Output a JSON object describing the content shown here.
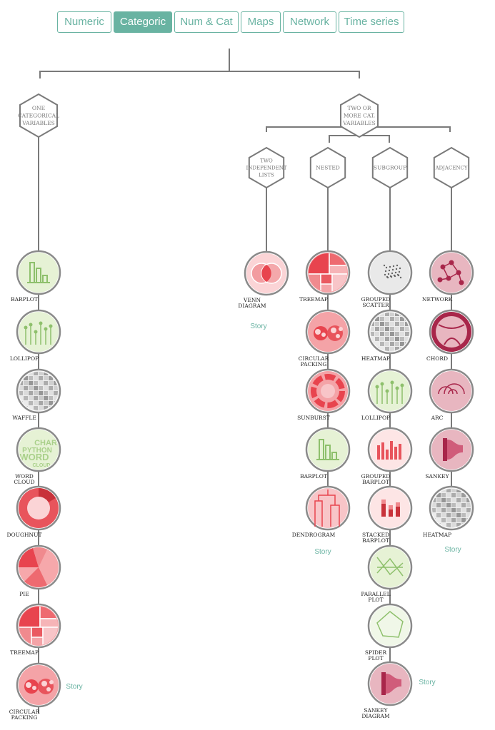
{
  "tabs": [
    {
      "label": "Numeric",
      "active": false
    },
    {
      "label": "Categoric",
      "active": true
    },
    {
      "label": "Num & Cat",
      "active": false
    },
    {
      "label": "Maps",
      "active": false
    },
    {
      "label": "Network",
      "active": false
    },
    {
      "label": "Time series",
      "active": false
    }
  ],
  "branches": {
    "one_cat": [
      "ONE",
      "CATEGORICAL",
      "VARIABLES"
    ],
    "two_cat": [
      "TWO OR",
      "MORE CAT.",
      "VARIABLES"
    ],
    "two_indep": [
      "TWO",
      "INDEPENDENT",
      "LISTS"
    ],
    "nested": [
      "NESTED"
    ],
    "subgroup": [
      "SUBGROUP"
    ],
    "adjacency": [
      "ADJACENCY"
    ]
  },
  "columns": {
    "one_cat": {
      "charts": [
        [
          "BARPLOT"
        ],
        [
          "LOLLIPOP"
        ],
        [
          "WAFFLE"
        ],
        [
          "WORD",
          "CLOUD"
        ],
        [
          "DOUGHNUT"
        ],
        [
          "PIE"
        ],
        [
          "TREEMAP"
        ],
        [
          "CIRCULAR",
          "PACKING"
        ]
      ],
      "story": "Story"
    },
    "two_indep": {
      "charts": [
        [
          "VENN",
          "DIAGRAM"
        ]
      ],
      "story": "Story"
    },
    "nested": {
      "charts": [
        [
          "TREEMAP"
        ],
        [
          "CIRCULAR",
          "PACKING"
        ],
        [
          "SUNBURST"
        ],
        [
          "BARPLOT"
        ],
        [
          "DENDROGRAM"
        ]
      ],
      "story": "Story"
    },
    "subgroup": {
      "charts": [
        [
          "GROUPED",
          "SCATTER"
        ],
        [
          "HEATMAP"
        ],
        [
          "LOLLIPOP"
        ],
        [
          "GROUPED",
          "BARPLOT"
        ],
        [
          "STACKED",
          "BARPLOT"
        ],
        [
          "PARALLEL",
          "PLOT"
        ],
        [
          "SPIDER",
          "PLOT"
        ],
        [
          "SANKEY",
          "DIAGRAM"
        ]
      ],
      "story": "Story"
    },
    "adjacency": {
      "charts": [
        [
          "NETWORK"
        ],
        [
          "CHORD"
        ],
        [
          "ARC"
        ],
        [
          "SANKEY"
        ],
        [
          "HEATMAP"
        ]
      ],
      "story": "Story"
    }
  },
  "word_cloud_words": [
    "CHAR",
    "PYTHON",
    "WORD",
    "CLOUD"
  ],
  "colors": {
    "accent": "#69b3a2",
    "line": "#7a7a7a",
    "green": "#8ec06c",
    "red": "#e8444e",
    "crimson": "#a8264a",
    "grey": "#999999"
  }
}
